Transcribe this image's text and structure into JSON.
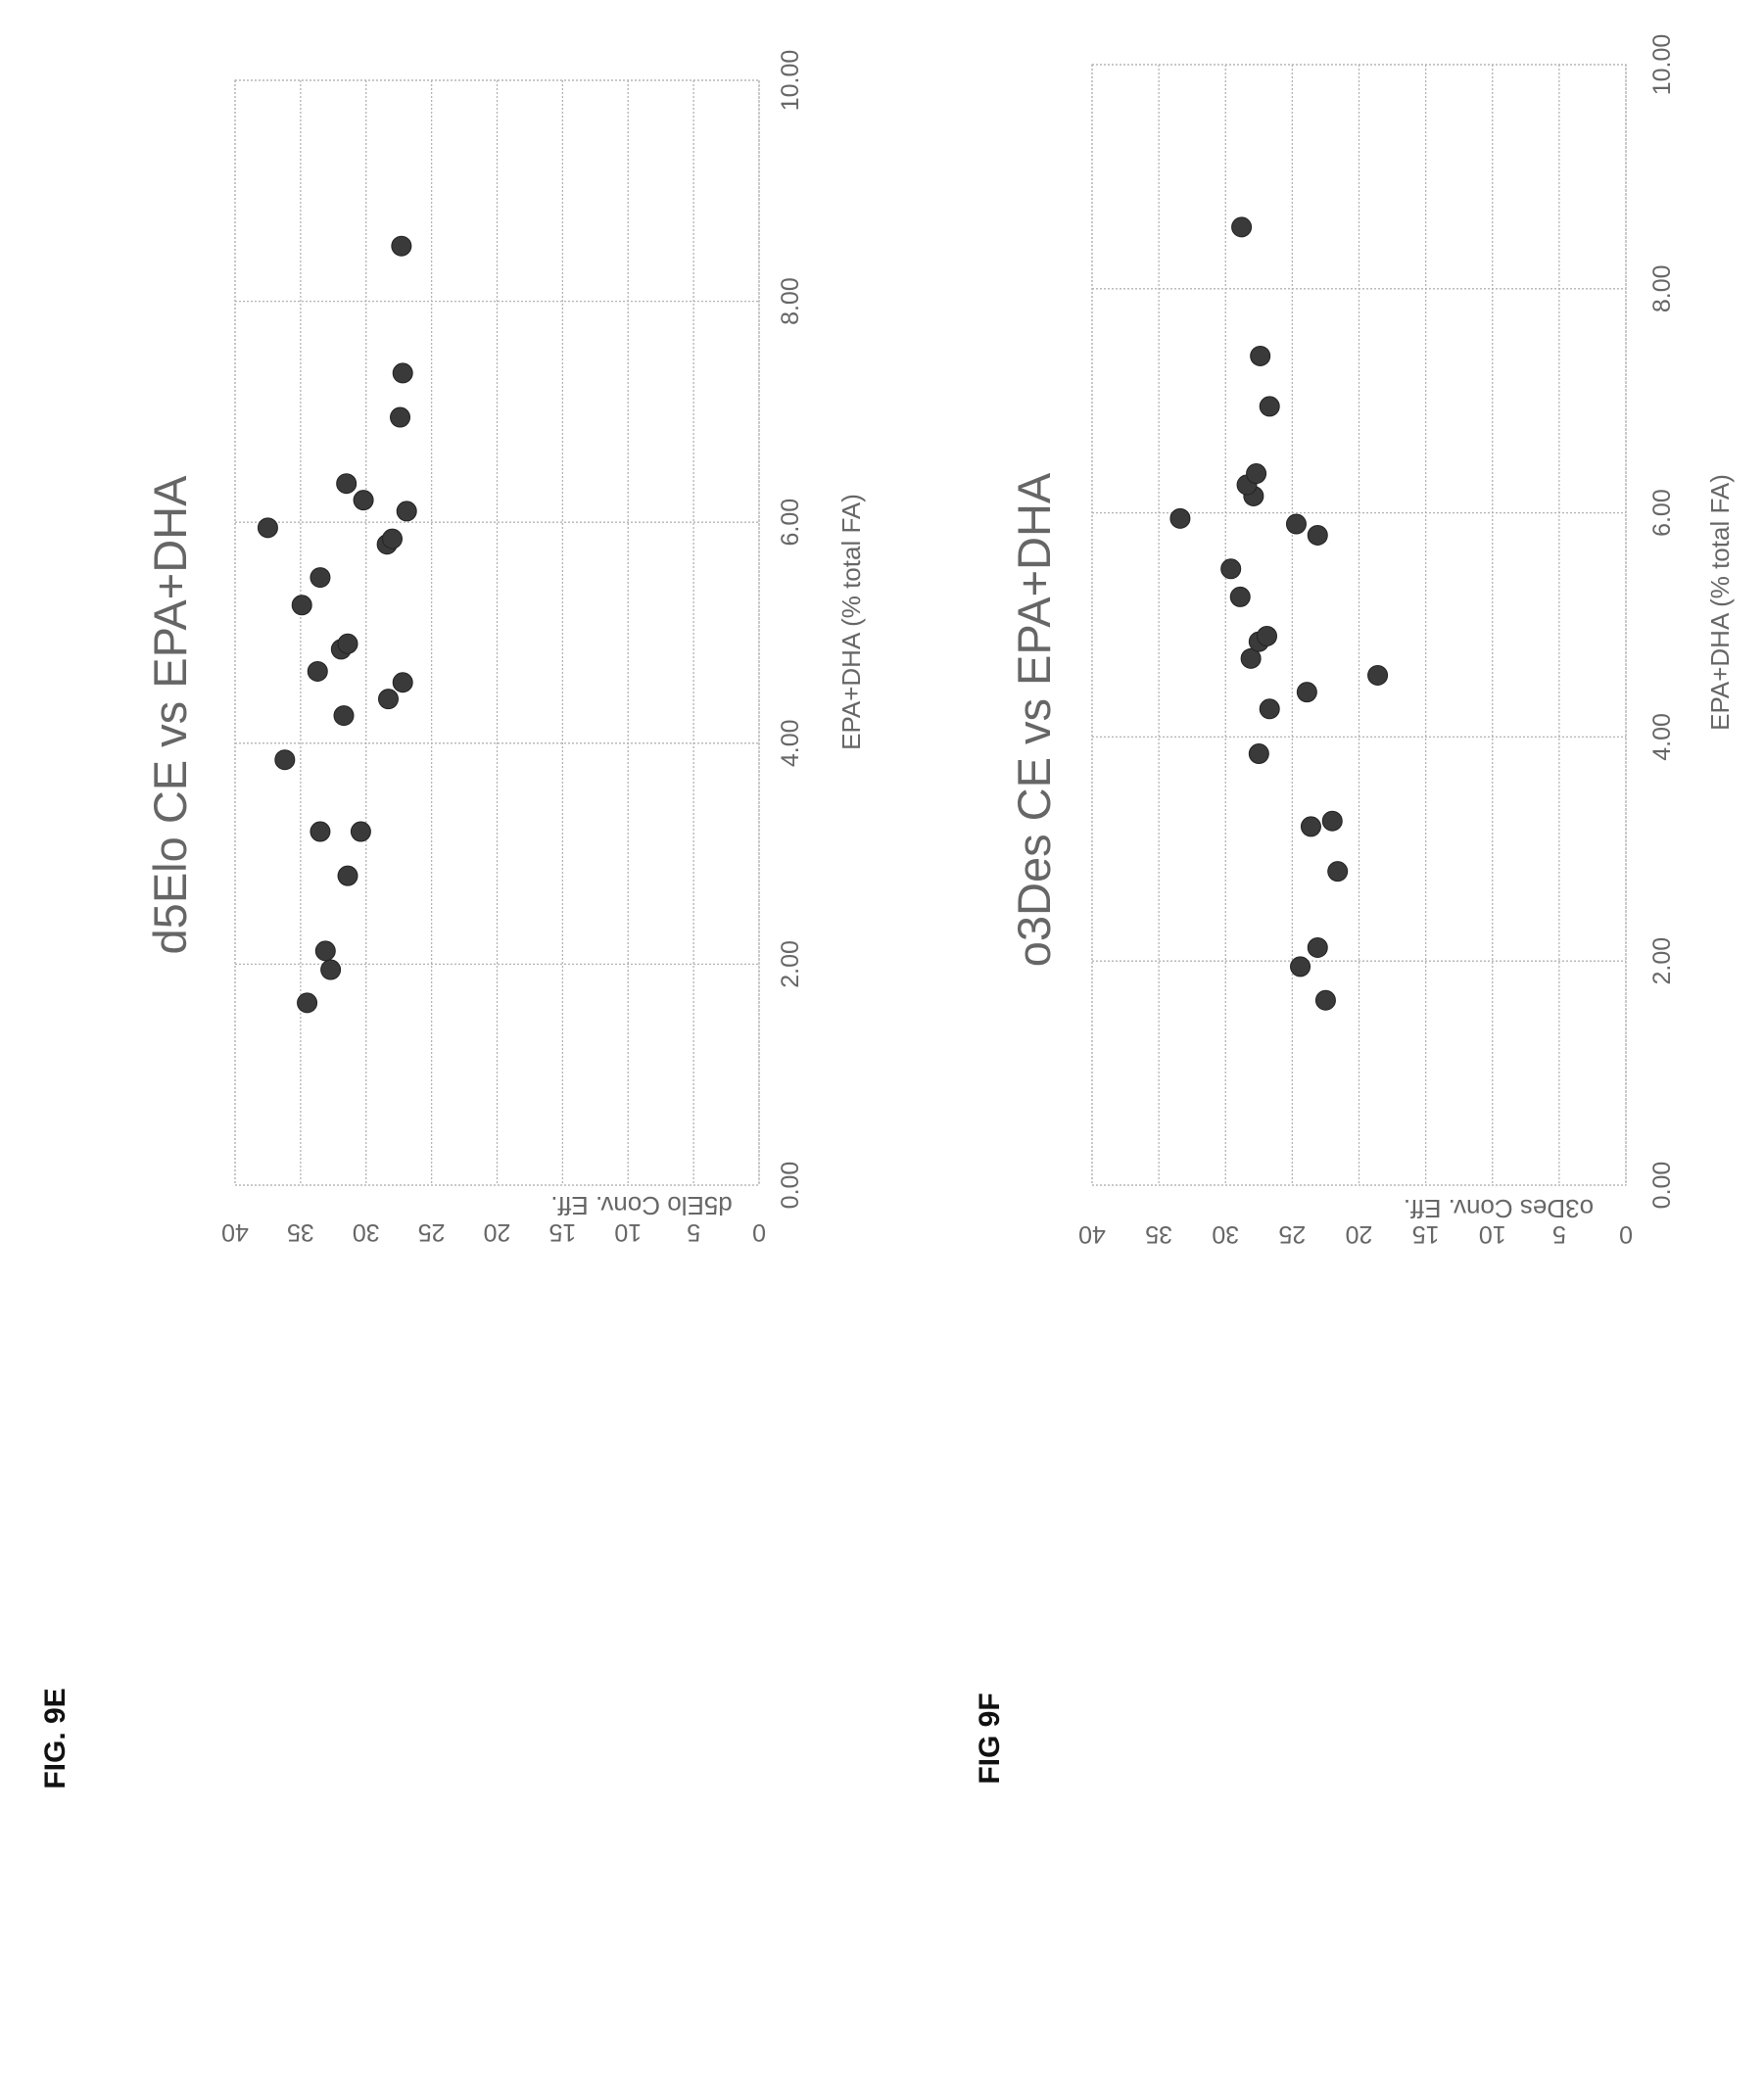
{
  "figure_labels": [
    "FIG. 9E",
    "FIG 9F"
  ],
  "chart_data": [
    {
      "type": "scatter",
      "title": "d5Elo CE vs EPA+DHA",
      "xlabel": "EPA+DHA  (% total FA)",
      "ylabel": "d5Elo Conv. Eff.",
      "xlim": [
        0,
        10
      ],
      "ylim": [
        0,
        40
      ],
      "x_ticks": [
        "0.00",
        "2.00",
        "4.00",
        "6.00",
        "8.00",
        "10.00"
      ],
      "y_ticks": [
        "0",
        "5",
        "10",
        "15",
        "20",
        "25",
        "30",
        "35",
        "40"
      ],
      "grid": true,
      "legend": "none",
      "marker_color": "#3a3a3a",
      "series": [
        {
          "points": [
            [
              1.65,
              34.5
            ],
            [
              1.95,
              32.7
            ],
            [
              2.12,
              33.1
            ],
            [
              2.8,
              31.4
            ],
            [
              3.2,
              30.4
            ],
            [
              3.2,
              33.5
            ],
            [
              3.85,
              36.2
            ],
            [
              4.25,
              31.7
            ],
            [
              4.4,
              28.3
            ],
            [
              4.55,
              27.2
            ],
            [
              4.65,
              33.7
            ],
            [
              4.85,
              31.9
            ],
            [
              4.9,
              31.4
            ],
            [
              5.25,
              34.9
            ],
            [
              5.5,
              33.5
            ],
            [
              5.8,
              28.4
            ],
            [
              5.85,
              28.0
            ],
            [
              5.95,
              37.5
            ],
            [
              6.1,
              26.9
            ],
            [
              6.2,
              30.2
            ],
            [
              6.35,
              31.5
            ],
            [
              6.95,
              27.4
            ],
            [
              7.35,
              27.2
            ],
            [
              8.5,
              27.3
            ]
          ]
        }
      ]
    },
    {
      "type": "scatter",
      "title": "o3Des CE vs EPA+DHA",
      "xlabel": "EPA+DHA  (% total FA)",
      "ylabel": "o3Des Conv. Eff.",
      "xlim": [
        0,
        10
      ],
      "ylim": [
        0,
        40
      ],
      "x_ticks": [
        "0.00",
        "2.00",
        "4.00",
        "6.00",
        "8.00",
        "10.00"
      ],
      "y_ticks": [
        "0",
        "5",
        "10",
        "15",
        "20",
        "25",
        "30",
        "35",
        "40"
      ],
      "grid": true,
      "legend": "none",
      "marker_color": "#3a3a3a",
      "series": [
        {
          "points": [
            [
              1.65,
              22.5
            ],
            [
              1.95,
              24.4
            ],
            [
              2.12,
              23.1
            ],
            [
              2.8,
              21.6
            ],
            [
              3.2,
              23.6
            ],
            [
              3.25,
              22.0
            ],
            [
              3.85,
              27.5
            ],
            [
              4.25,
              26.7
            ],
            [
              4.4,
              23.9
            ],
            [
              4.55,
              18.6
            ],
            [
              4.7,
              28.1
            ],
            [
              4.85,
              27.5
            ],
            [
              4.9,
              26.9
            ],
            [
              5.25,
              28.9
            ],
            [
              5.5,
              29.6
            ],
            [
              5.8,
              23.1
            ],
            [
              5.9,
              24.7
            ],
            [
              5.95,
              33.4
            ],
            [
              6.15,
              27.9
            ],
            [
              6.25,
              28.4
            ],
            [
              6.35,
              27.7
            ],
            [
              6.95,
              26.7
            ],
            [
              7.4,
              27.4
            ],
            [
              8.55,
              28.8
            ]
          ]
        }
      ]
    }
  ]
}
